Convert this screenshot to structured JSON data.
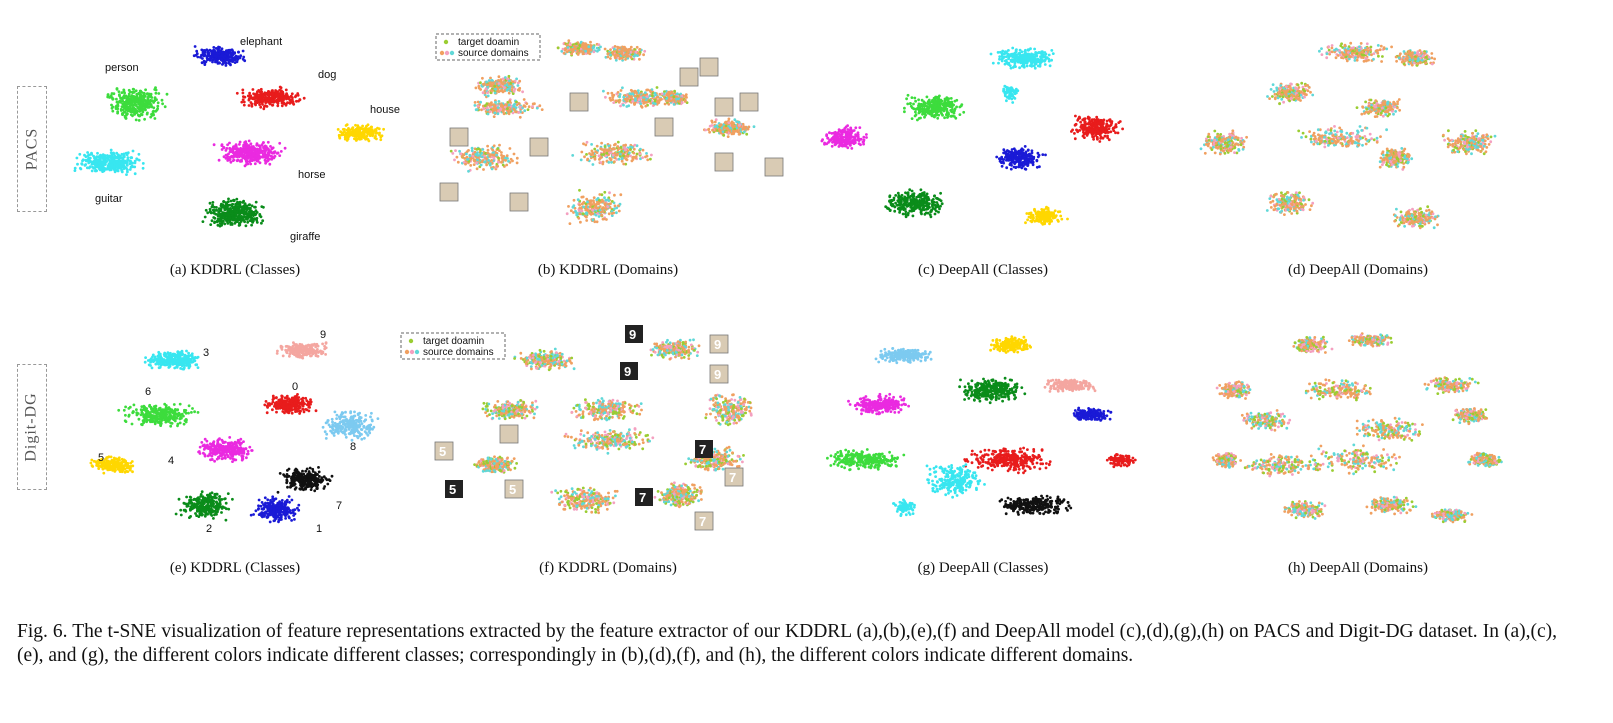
{
  "row_labels": [
    "PACS",
    "Digit-DG"
  ],
  "panels": [
    {
      "caption": "(a) KDDRL (Classes)"
    },
    {
      "caption": "(b) KDDRL (Domains)"
    },
    {
      "caption": "(c) DeepAll (Classes)"
    },
    {
      "caption": "(d) DeepAll (Domains)"
    },
    {
      "caption": "(e) KDDRL (Classes)"
    },
    {
      "caption": "(f) KDDRL (Domains)"
    },
    {
      "caption": "(g) DeepAll (Classes)"
    },
    {
      "caption": "(h) DeepAll (Domains)"
    }
  ],
  "pacs_class_labels": [
    "elephant",
    "person",
    "dog",
    "house",
    "horse",
    "guitar",
    "giraffe"
  ],
  "digit_class_labels": [
    "9",
    "3",
    "0",
    "6",
    "8",
    "5",
    "4",
    "7",
    "2",
    "1"
  ],
  "legend": {
    "target": "target doamin",
    "source": "source domains"
  },
  "digit_thumbs": [
    "9",
    "9",
    "9",
    "9",
    "5",
    "5",
    "5",
    "7",
    "7",
    "7",
    "7"
  ],
  "colors": {
    "class_colors": [
      "#1a1ad6",
      "#3ddc3d",
      "#e81c1c",
      "#ffd700",
      "#ea2ae0",
      "#38e6f0",
      "#0a8c1a",
      "#f4a6a0",
      "#7ccaf0",
      "#111111"
    ],
    "domain_target": "#9acd32",
    "domain_sources": [
      "#f0a060",
      "#f4a0c0",
      "#60d8d8"
    ]
  },
  "caption": "Fig. 6.  The t-SNE visualization of feature representations extracted by the feature extractor of our KDDRL (a),(b),(e),(f) and DeepAll model (c),(d),(g),(h) on PACS and Digit-DG dataset. In (a),(c),(e), and (g), the different colors indicate different classes; correspondingly in (b),(d),(f), and (h), the different colors indicate different domains."
}
